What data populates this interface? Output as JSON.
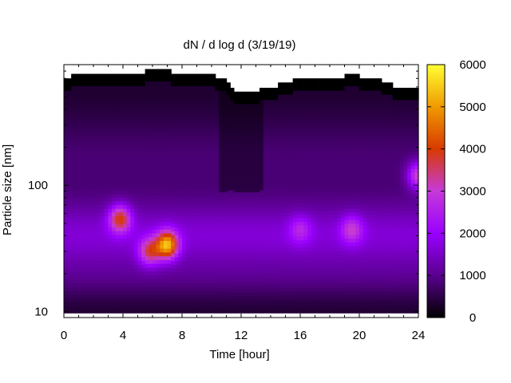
{
  "chart_data": {
    "type": "heatmap",
    "title": "dN / d log d (3/19/19)",
    "xlabel": "Time [hour]",
    "ylabel": "Particle size [nm]",
    "xlim": [
      0,
      24
    ],
    "ylim": [
      9,
      900
    ],
    "y_scale": "log",
    "x_ticks": [
      0,
      4,
      8,
      12,
      16,
      20,
      24
    ],
    "x_tick_labels": [
      "0",
      "4",
      "8",
      "12",
      "16",
      "20",
      "24"
    ],
    "y_ticks": [
      10,
      100
    ],
    "y_tick_labels": [
      "10",
      "100"
    ],
    "colorbar": {
      "range": [
        0,
        6000
      ],
      "ticks": [
        0,
        1000,
        2000,
        3000,
        4000,
        5000,
        6000
      ],
      "tick_labels": [
        "0",
        "1000",
        "2000",
        "3000",
        "4000",
        "5000",
        "6000"
      ],
      "colors": [
        "#000000",
        "#5a008f",
        "#9a00ff",
        "#c63ad8",
        "#d83a00",
        "#f09a00",
        "#ffff33"
      ]
    },
    "grid": false,
    "data_bottom_nm": 9.8,
    "upper_limit_nm": [
      [
        0,
        700
      ],
      [
        0.5,
        760
      ],
      [
        5.5,
        760
      ],
      [
        5.5,
        830
      ],
      [
        7.2,
        830
      ],
      [
        7.2,
        760
      ],
      [
        9.8,
        760
      ],
      [
        10.2,
        700
      ],
      [
        10.9,
        650
      ],
      [
        11.3,
        590
      ],
      [
        11.6,
        550
      ],
      [
        13.2,
        550
      ],
      [
        13.2,
        590
      ],
      [
        14.5,
        590
      ],
      [
        14.5,
        650
      ],
      [
        15.4,
        650
      ],
      [
        15.4,
        700
      ],
      [
        19.1,
        700
      ],
      [
        19.1,
        760
      ],
      [
        20.1,
        760
      ],
      [
        20.1,
        700
      ],
      [
        21.6,
        700
      ],
      [
        21.6,
        650
      ],
      [
        22.2,
        650
      ],
      [
        22.2,
        590
      ],
      [
        24,
        590
      ]
    ],
    "hotspots": [
      {
        "label": "peak near 7 h",
        "t": 7.0,
        "d_nm": 34,
        "value": 5200
      },
      {
        "label": "mode near 4 h",
        "t": 3.8,
        "d_nm": 55,
        "value": 4000
      },
      {
        "label": "mode near 6 h",
        "t": 5.8,
        "d_nm": 30,
        "value": 3600
      },
      {
        "label": "late mode near 24 h",
        "t": 24.0,
        "d_nm": 120,
        "value": 3700
      },
      {
        "label": "evening mode near 19.5 h",
        "t": 19.5,
        "d_nm": 45,
        "value": 2900
      },
      {
        "label": "mode near 16 h",
        "t": 16.0,
        "d_nm": 45,
        "value": 2500
      }
    ]
  }
}
